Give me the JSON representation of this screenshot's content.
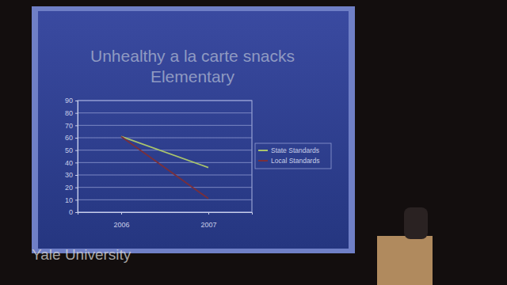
{
  "chart_data": {
    "type": "line",
    "title": "Unhealthy a la carte snacks",
    "subtitle": "Elementary",
    "categories": [
      "2006",
      "2007"
    ],
    "series": [
      {
        "name": "State Standards",
        "color": "#a9c46c",
        "values": [
          61,
          36
        ]
      },
      {
        "name": "Local Standards",
        "color": "#7a2f3a",
        "values": [
          61,
          11
        ]
      }
    ],
    "ylim": [
      0,
      90
    ],
    "yticks": [
      0,
      10,
      20,
      30,
      40,
      50,
      60,
      70,
      80,
      90
    ],
    "grid": true,
    "legend": "right",
    "annotations": [
      "Yale University"
    ]
  }
}
